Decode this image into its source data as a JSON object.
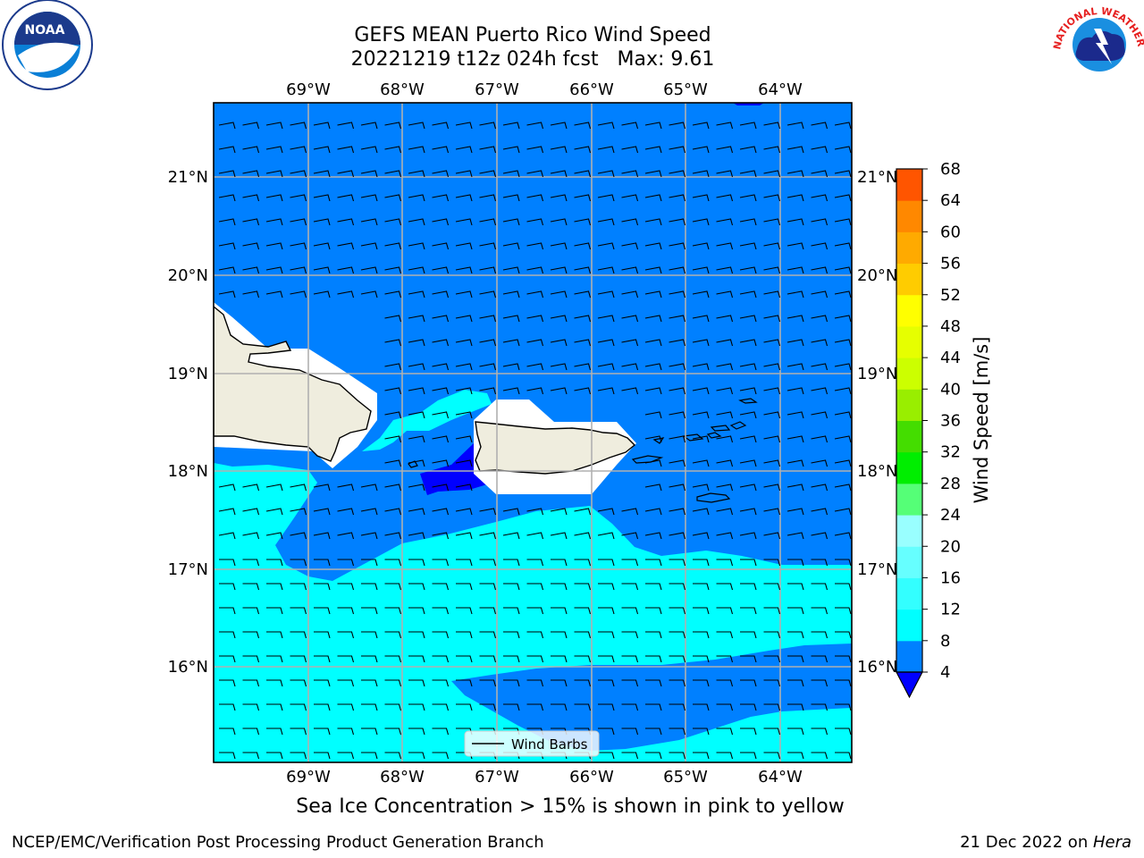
{
  "title": {
    "line1": "GEFS MEAN Puerto Rico Wind Speed",
    "line2": "20221219 t12z 024h fcst   Max: 9.61"
  },
  "map": {
    "lon_range": [
      -70.0,
      -63.25
    ],
    "lat_range": [
      15.0,
      21.75
    ],
    "lon_ticks": [
      "69°W",
      "68°W",
      "67°W",
      "66°W",
      "65°W",
      "64°W"
    ],
    "lat_ticks": [
      "21°N",
      "20°N",
      "19°N",
      "18°N",
      "17°N",
      "16°N"
    ],
    "grid": true,
    "land_color": "#efedde",
    "legend_label": "Wind Barbs",
    "barb_direction": "easterly"
  },
  "colorbar": {
    "label": "Wind Speed [m/s]",
    "ticks": [
      "4",
      "8",
      "12",
      "16",
      "20",
      "24",
      "28",
      "32",
      "36",
      "40",
      "44",
      "48",
      "52",
      "56",
      "60",
      "64",
      "68"
    ],
    "colors": [
      "#0080ff",
      "#00ffff",
      "#33ffff",
      "#66ffff",
      "#99ffff",
      "#55ff77",
      "#00ee00",
      "#44dd00",
      "#99ee00",
      "#ccff00",
      "#e6ff00",
      "#ffff00",
      "#ffcc00",
      "#ffaa00",
      "#ff8800",
      "#ff5500",
      "#ff2200",
      "#ff0000"
    ],
    "under_color": "#0000ff"
  },
  "subtitle": "Sea Ice Concentration > 15% is shown in pink to yellow",
  "footer": {
    "left": "NCEP/EMC/Verification Post Processing Product Generation Branch",
    "right_date": "21 Dec 2022 on ",
    "right_host": "Hera"
  },
  "logos": {
    "noaa_text": "NOAA",
    "nws_text": "NATIONAL WEATHER SERVICE"
  }
}
